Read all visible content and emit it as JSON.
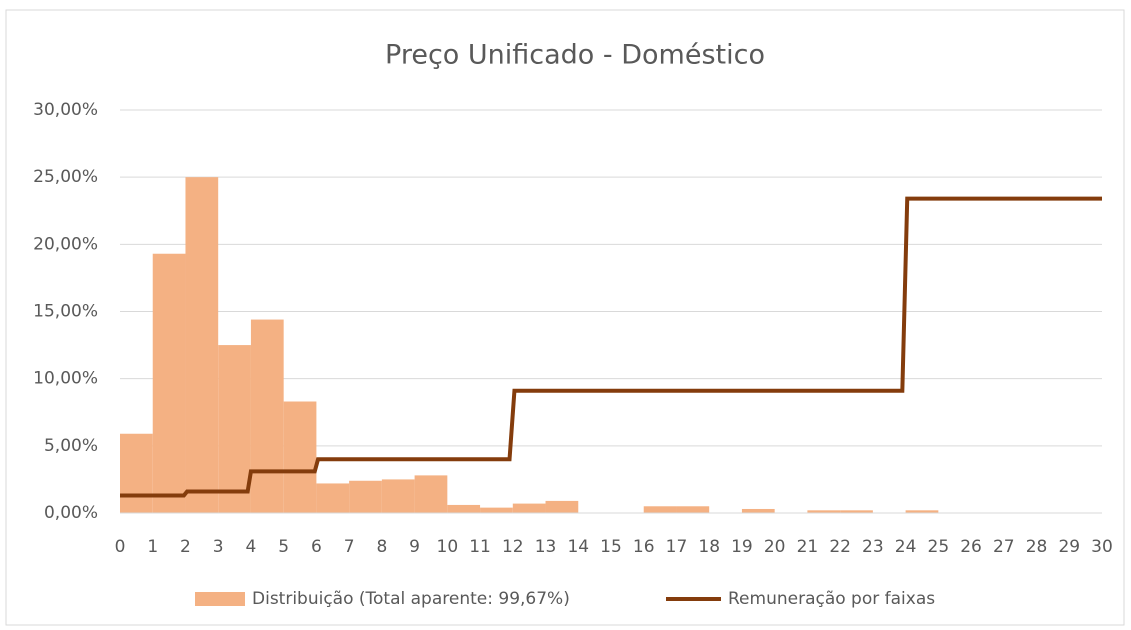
{
  "chart_data": {
    "type": "combo",
    "title": "Preço Unificado - Doméstico",
    "bins": [
      0,
      1,
      2,
      3,
      4,
      5,
      6,
      7,
      8,
      9,
      10,
      11,
      12,
      13,
      14,
      15,
      16,
      17,
      18,
      19,
      20,
      21,
      22,
      23,
      24,
      25,
      26,
      27,
      28,
      29,
      30
    ],
    "series": [
      {
        "name": "Distribuição (Total aparente: 99,67%)",
        "type": "histogram",
        "color": "#f4b183",
        "values": [
          5.9,
          19.3,
          25.0,
          12.5,
          14.4,
          8.3,
          2.2,
          2.4,
          2.5,
          2.8,
          0.6,
          0.4,
          0.7,
          0.9,
          0,
          0,
          0.5,
          0.5,
          0,
          0.3,
          0,
          0.2,
          0.2,
          0,
          0.2,
          0,
          0,
          0,
          0,
          0
        ]
      },
      {
        "name": "Remuneração por faixas",
        "type": "line",
        "color": "#843c0c",
        "x": [
          0,
          1.95,
          2.05,
          3.9,
          4.0,
          5.95,
          6.05,
          11.9,
          12.05,
          23.9,
          24.05,
          30
        ],
        "values": [
          1.3,
          1.3,
          1.6,
          1.6,
          3.1,
          3.1,
          4.0,
          4.0,
          9.1,
          9.1,
          23.4,
          23.4
        ]
      }
    ],
    "xlim": [
      0,
      30
    ],
    "xticks": [
      0,
      1,
      2,
      3,
      4,
      5,
      6,
      7,
      8,
      9,
      10,
      11,
      12,
      13,
      14,
      15,
      16,
      17,
      18,
      19,
      20,
      21,
      22,
      23,
      24,
      25,
      26,
      27,
      28,
      29,
      30
    ],
    "ylim": [
      0,
      30
    ],
    "yticks": [
      {
        "value": 0,
        "label": "0,00%"
      },
      {
        "value": 5,
        "label": "5,00%"
      },
      {
        "value": 10,
        "label": "10,00%"
      },
      {
        "value": 15,
        "label": "15,00%"
      },
      {
        "value": 20,
        "label": "20,00%"
      },
      {
        "value": 25,
        "label": "25,00%"
      },
      {
        "value": 30,
        "label": "30,00%"
      }
    ],
    "grid": true,
    "legend": "bottom"
  }
}
